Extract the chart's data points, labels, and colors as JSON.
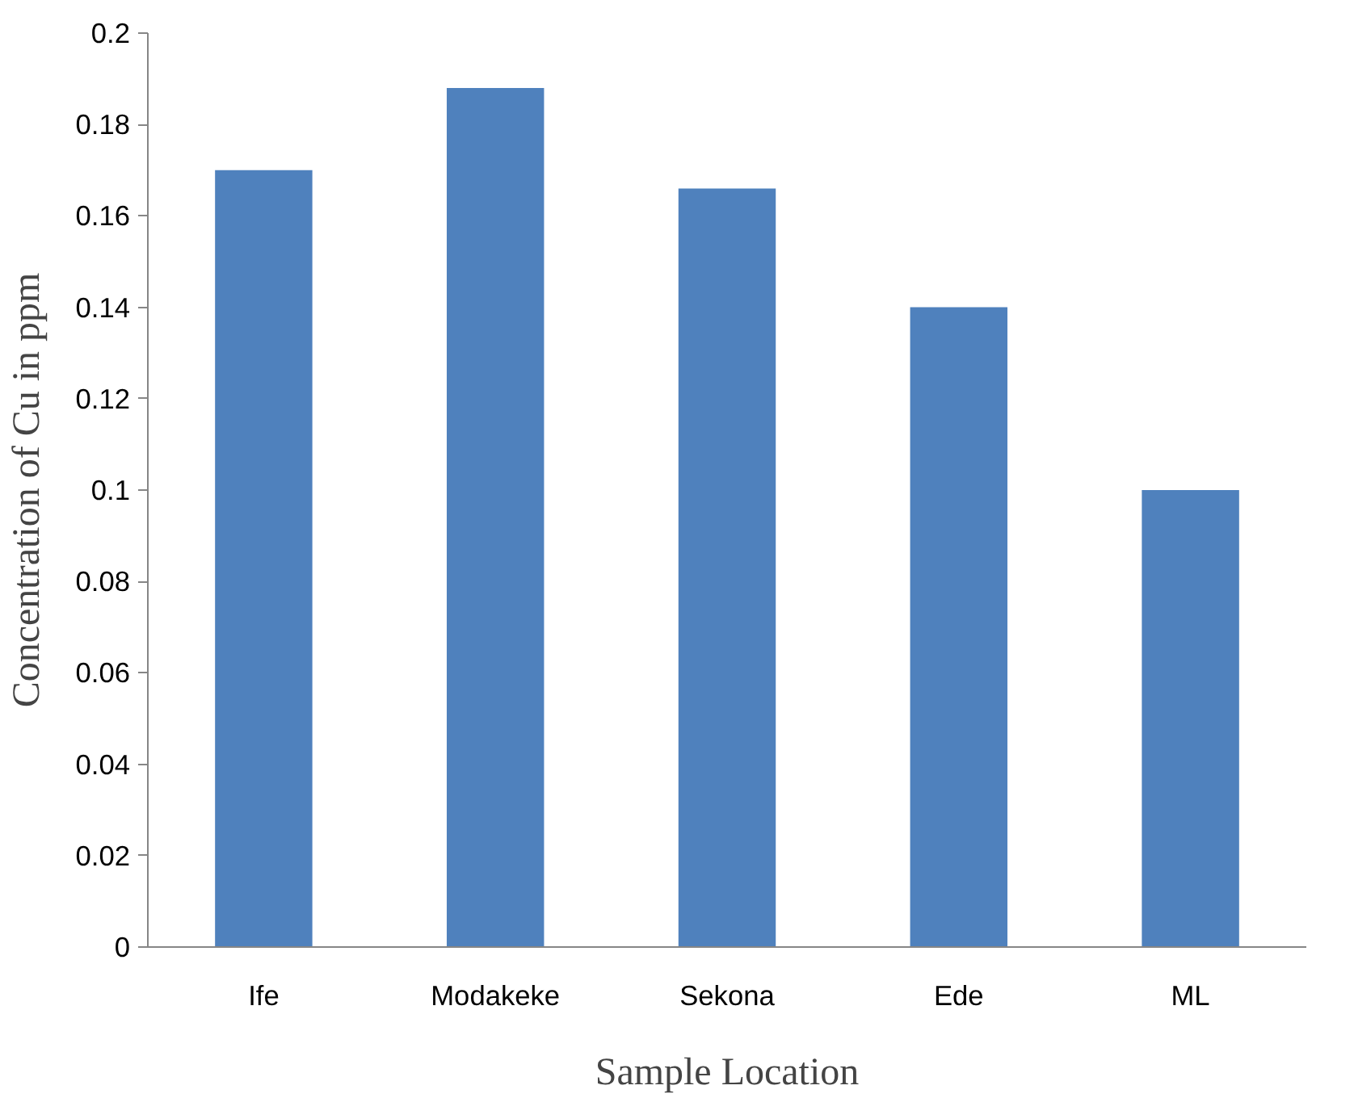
{
  "chart_data": {
    "type": "bar",
    "xlabel": "Sample Location",
    "ylabel": "Concentration of Cu in ppm",
    "categories": [
      "Ife",
      "Modakeke",
      "Sekona",
      "Ede",
      "ML"
    ],
    "values": [
      0.17,
      0.188,
      0.166,
      0.14,
      0.1
    ],
    "color": "#4f81bd",
    "ylim": [
      0,
      0.2
    ],
    "yticks": [
      0,
      0.02,
      0.04,
      0.06,
      0.08,
      {
        "value": 0.1,
        "label": "0.1"
      },
      0.12,
      0.14,
      0.16,
      0.18,
      {
        "value": 0.2,
        "label": "0.2"
      }
    ],
    "grid": false
  }
}
